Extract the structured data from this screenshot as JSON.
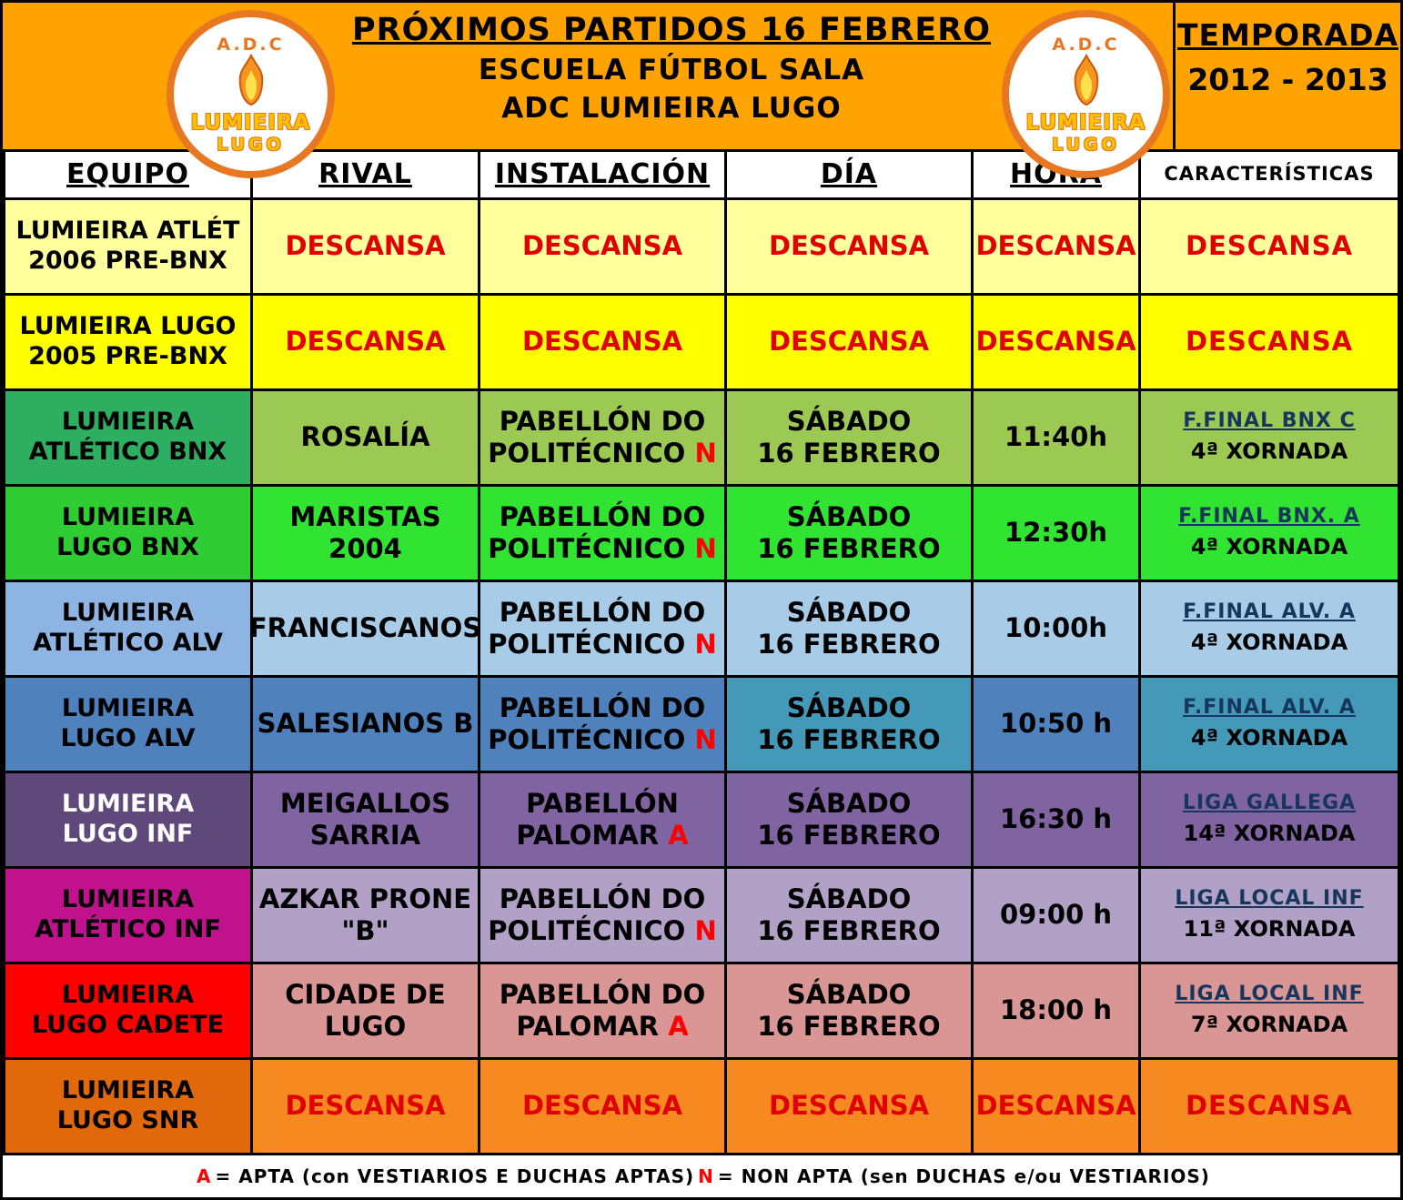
{
  "header": {
    "title_line1": "PRÓXIMOS PARTIDOS 16 FEBRERO",
    "title_line2": "ESCUELA FÚTBOL SALA",
    "title_line3": "ADC LUMIEIRA LUGO",
    "season_line1": "TEMPORADA",
    "season_line2": "2012 - 2013",
    "logo": {
      "acronym": "A.D.C",
      "name": "LUMIEIRA",
      "city": "LUGO"
    },
    "banner_color": "#FFA303"
  },
  "table": {
    "columns": [
      "EQUIPO",
      "RIVAL",
      "INSTALACIÓN",
      "DÍA",
      "HORA",
      "CARACTERÍSTICAS"
    ],
    "rows": [
      {
        "team_lines": [
          "LUMIEIRA ATLÉT",
          "2006 PRE-BNX"
        ],
        "rival_lines": [
          "DESCANSA"
        ],
        "inst_lines": [
          "DESCANSA"
        ],
        "inst_flag": "",
        "dia_lines": [
          "DESCANSA"
        ],
        "hora": "DESCANSA",
        "caract_line1": "DESCANSA",
        "caract_line2": "",
        "descansa": true,
        "colors": {
          "team_bg": "#FFFF9E",
          "team_fg": "#000000",
          "cell_bg": "#FFFF9E"
        }
      },
      {
        "team_lines": [
          "LUMIEIRA LUGO",
          "2005 PRE-BNX"
        ],
        "rival_lines": [
          "DESCANSA"
        ],
        "inst_lines": [
          "DESCANSA"
        ],
        "inst_flag": "",
        "dia_lines": [
          "DESCANSA"
        ],
        "hora": "DESCANSA",
        "caract_line1": "DESCANSA",
        "caract_line2": "",
        "descansa": true,
        "colors": {
          "team_bg": "#FFFF00",
          "team_fg": "#000000",
          "cell_bg": "#FFFF00"
        }
      },
      {
        "team_lines": [
          "LUMIEIRA",
          "ATLÉTICO BNX"
        ],
        "rival_lines": [
          "ROSALÍA"
        ],
        "inst_lines": [
          "PABELLÓN DO",
          "POLITÉCNICO"
        ],
        "inst_flag": "N",
        "dia_lines": [
          "SÁBADO",
          "16 FEBRERO"
        ],
        "hora": "11:40h",
        "caract_line1": "F.FINAL BNX  C",
        "caract_line2": "4ª XORNADA",
        "descansa": false,
        "colors": {
          "team_bg": "#2EAE60",
          "team_fg": "#000000",
          "cell_bg": "#9CC854"
        }
      },
      {
        "team_lines": [
          "LUMIEIRA",
          "LUGO BNX"
        ],
        "rival_lines": [
          "MARISTAS",
          "2004"
        ],
        "inst_lines": [
          "PABELLÓN DO",
          "POLITÉCNICO"
        ],
        "inst_flag": "N",
        "dia_lines": [
          "SÁBADO",
          "16 FEBRERO"
        ],
        "hora": "12:30h",
        "caract_line1": "F.FINAL BNX. A",
        "caract_line2": "4ª XORNADA",
        "descansa": false,
        "colors": {
          "team_bg": "#2FCC34",
          "team_fg": "#000000",
          "cell_bg": "#31E431"
        }
      },
      {
        "team_lines": [
          "LUMIEIRA",
          "ATLÉTICO ALV"
        ],
        "rival_lines": [
          "FRANCISCANOS"
        ],
        "inst_lines": [
          "PABELLÓN DO",
          "POLITÉCNICO"
        ],
        "inst_flag": "N",
        "dia_lines": [
          "SÁBADO",
          "16 FEBRERO"
        ],
        "hora": "10:00h",
        "caract_line1": "F.FINAL ALV.  A",
        "caract_line2": "4ª XORNADA",
        "descansa": false,
        "colors": {
          "team_bg": "#8DB4E2",
          "team_fg": "#000000",
          "cell_bg": "#A8CCE8"
        }
      },
      {
        "team_lines": [
          "LUMIEIRA",
          "LUGO ALV"
        ],
        "rival_lines": [
          "SALESIANOS B"
        ],
        "inst_lines": [
          "PABELLÓN DO",
          "POLITÉCNICO"
        ],
        "inst_flag": "N",
        "dia_lines": [
          "SÁBADO",
          "16 FEBRERO"
        ],
        "hora": "10:50 h",
        "caract_line1": "F.FINAL ALV. A",
        "caract_line2": "4ª XORNADA",
        "descansa": false,
        "colors": {
          "team_bg": "#4F81BD",
          "team_fg": "#000000",
          "cell_bgs": [
            "#4F81BD",
            "#4F81BD",
            "#4499B8",
            "#4F81BD",
            "#4499B8"
          ]
        }
      },
      {
        "team_lines": [
          "LUMIEIRA",
          "LUGO INF"
        ],
        "rival_lines": [
          "MEIGALLOS",
          "SARRIA"
        ],
        "inst_lines": [
          "PABELLÓN",
          "PALOMAR"
        ],
        "inst_flag": "A",
        "dia_lines": [
          "SÁBADO",
          "16 FEBRERO"
        ],
        "hora": "16:30 h",
        "caract_line1": "LIGA GALLEGA",
        "caract_line2": "14ª XORNADA",
        "descansa": false,
        "colors": {
          "team_bg": "#5F497A",
          "team_fg": "#FFFFFF",
          "cell_bg": "#8064A2"
        }
      },
      {
        "team_lines": [
          "LUMIEIRA",
          "ATLÉTICO INF"
        ],
        "rival_lines": [
          "AZKAR PRONE",
          "\"B\""
        ],
        "inst_lines": [
          "PABELLÓN DO",
          "POLITÉCNICO"
        ],
        "inst_flag": "N",
        "dia_lines": [
          "SÁBADO",
          "16 FEBRERO"
        ],
        "hora": "09:00 h",
        "caract_line1": "LIGA LOCAL INF",
        "caract_line2": "11ª XORNADA",
        "descansa": false,
        "colors": {
          "team_bg": "#C0128C",
          "team_fg": "#000000",
          "cell_bg": "#B2A1C7"
        }
      },
      {
        "team_lines": [
          "LUMIEIRA",
          "LUGO CADETE"
        ],
        "rival_lines": [
          "CIDADE DE",
          "LUGO"
        ],
        "inst_lines": [
          "PABELLÓN DO",
          "PALOMAR"
        ],
        "inst_flag": "A",
        "dia_lines": [
          "SÁBADO",
          "16 FEBRERO"
        ],
        "hora": "18:00 h",
        "caract_line1": "LIGA LOCAL INF",
        "caract_line2": "7ª XORNADA",
        "descansa": false,
        "colors": {
          "team_bg": "#FE0000",
          "team_fg": "#000000",
          "cell_bg": "#D99694"
        }
      },
      {
        "team_lines": [
          "LUMIEIRA",
          "LUGO SNR"
        ],
        "rival_lines": [
          "DESCANSA"
        ],
        "inst_lines": [
          "DESCANSA"
        ],
        "inst_flag": "",
        "dia_lines": [
          "DESCANSA"
        ],
        "hora": "DESCANSA",
        "caract_line1": "DESCANSA",
        "caract_line2": "",
        "descansa": true,
        "colors": {
          "team_bg": "#E2690B",
          "team_fg": "#000000",
          "cell_bg": "#F68A20"
        }
      }
    ]
  },
  "legend": {
    "a": "A",
    "a_text": "= APTA (con VESTIARIOS E DUCHAS APTAS)",
    "n": "N",
    "n_text": "= NON APTA (sen DUCHAS e/ou VESTIARIOS)"
  },
  "status_colors": {
    "descansa_text": "#E00000",
    "apta_flag": "#FF0000",
    "competition_link": "#16365C"
  }
}
